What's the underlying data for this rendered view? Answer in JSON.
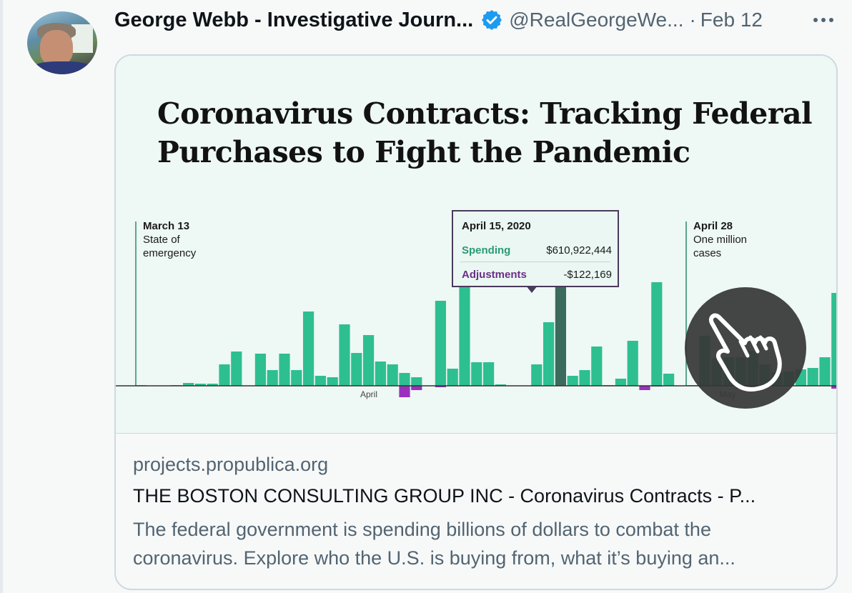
{
  "tweet": {
    "author_name": "George Webb - Investigative Journ...",
    "handle": "@RealGeorgeWe...",
    "separator": "·",
    "date": "Feb 12"
  },
  "card": {
    "media_title": "Coronavirus Contracts: Tracking Federal Purchases to Fight the Pandemic",
    "annotations": [
      {
        "date": "March 13",
        "text": [
          "State of",
          "emergency"
        ]
      },
      {
        "date": "April 28",
        "text": [
          "One million",
          "cases"
        ]
      }
    ],
    "axis_labels": [
      "April",
      "May"
    ],
    "tooltip": {
      "date": "April 15, 2020",
      "spending_label": "Spending",
      "spending_value": "$610,922,444",
      "adjustments_label": "Adjustments",
      "adjustments_value": "-$122,169"
    },
    "domain": "projects.propublica.org",
    "link_title": "THE BOSTON CONSULTING GROUP INC - Coronavirus Contracts - P...",
    "description": "The federal government is spending billions of dollars to combat the coronavirus. Explore who the U.S. is buying from, what it’s buying an..."
  },
  "chart_data": {
    "type": "bar",
    "series": [
      {
        "values": [
          1,
          0,
          0,
          1,
          4,
          3,
          3,
          30,
          48,
          0,
          45,
          22,
          45,
          22,
          104,
          14,
          12,
          86,
          46,
          71,
          34,
          30,
          18,
          12,
          0,
          119,
          24,
          153,
          33,
          33,
          2,
          0,
          0,
          30,
          89,
          152,
          14,
          22,
          55,
          1,
          10,
          63,
          0,
          145,
          17,
          0,
          1,
          70,
          38,
          40,
          40,
          49,
          30,
          19,
          20,
          23,
          25,
          40,
          130
        ]
      },
      {
        "values": [
          0,
          0,
          0,
          0,
          0,
          0,
          0,
          0,
          0,
          0,
          0,
          0,
          0,
          0,
          0,
          0,
          0,
          0,
          0,
          0,
          0,
          0,
          -16,
          -6,
          0,
          -2,
          0,
          0,
          0,
          0,
          0,
          0,
          0,
          0,
          0,
          0,
          0,
          0,
          0,
          0,
          0,
          0,
          -6,
          -1,
          0,
          0,
          0,
          0,
          0,
          0,
          -4,
          0,
          0,
          0,
          0,
          0,
          0,
          0,
          -4
        ]
      }
    ],
    "highlight_index": 35,
    "colors": {
      "spending": "#2ebf91",
      "adjustments": "#9b2fbf",
      "highlight": "#3b6b5c"
    }
  }
}
